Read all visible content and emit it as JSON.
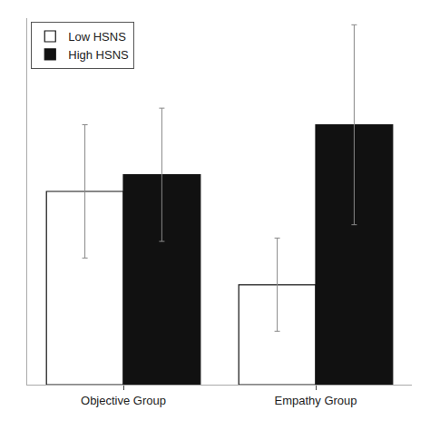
{
  "chart_data": {
    "type": "bar",
    "categories": [
      "Objective Group",
      "Empathy Group"
    ],
    "series": [
      {
        "name": "Low HSNS",
        "color": "#ffffff",
        "values": [
          0.58,
          0.3
        ],
        "errors": [
          0.2,
          0.14
        ]
      },
      {
        "name": "High HSNS",
        "color": "#111111",
        "values": [
          0.63,
          0.78
        ],
        "errors": [
          0.2,
          0.3
        ]
      }
    ],
    "ylim": [
      0.0,
      1.1
    ],
    "grid": false,
    "legend": "upper left",
    "tick_labels": "x"
  }
}
